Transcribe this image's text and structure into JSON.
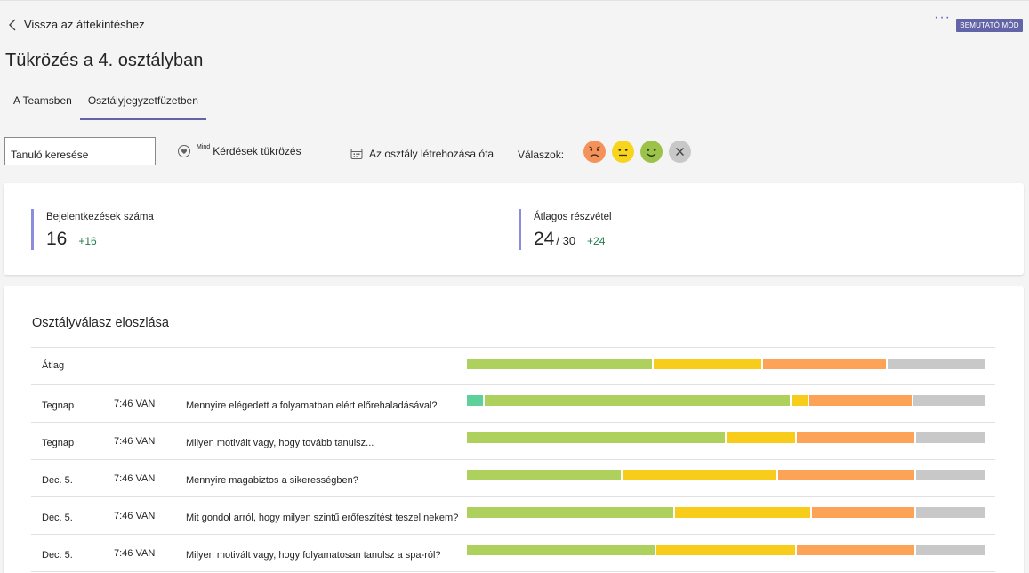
{
  "nav": {
    "back_label": "Vissza az áttekintéshez",
    "more_label": "···",
    "demo_badge": "BEMUTATÓ MÓD"
  },
  "page": {
    "title": "Tükrözés a 4. osztályban"
  },
  "tabs": [
    {
      "label": "A Teamsben"
    },
    {
      "label": "Osztályjegyzetfüzetben"
    }
  ],
  "toolbar": {
    "search_placeholder": "Tanuló keresése",
    "question_filter": {
      "superscript": "Mind",
      "label": "Kérdések tükrözés",
      "icon": "heart-check-icon"
    },
    "date_filter": {
      "label": "Az osztály létrehozása óta",
      "icon": "calendar-icon"
    },
    "answers_label": "Válaszok:",
    "emoji_filters": [
      {
        "name": "sad-face-icon",
        "color": "#f4925a"
      },
      {
        "name": "neutral-face-icon",
        "color": "#f7d51c"
      },
      {
        "name": "happy-face-icon",
        "color": "#9cc24a"
      },
      {
        "name": "clear-filter-icon",
        "color": "#c8c8c8"
      }
    ]
  },
  "stats": {
    "logins": {
      "label": "Bejelentkezések száma",
      "value": "16",
      "delta": "+16"
    },
    "participation": {
      "label": "Átlagos részvétel",
      "value": "24",
      "total": "/ 30",
      "delta": "+24"
    }
  },
  "distribution": {
    "title": "Osztályválasz eloszlása",
    "colors": {
      "great": "#5ed19a",
      "good": "#add15c",
      "ok": "#f8cc1b",
      "bad": "#fda358",
      "none": "#c8c8c8"
    },
    "average": {
      "label": "Átlag",
      "shares": {
        "great": 0.0,
        "good": 0.36,
        "ok": 0.21,
        "bad": 0.24,
        "none": 0.19
      }
    },
    "rows": [
      {
        "date": "Tegnap",
        "time": "7:46 VAN",
        "question": "Mennyire elégedett a folyamatban elért előrehaladásával?",
        "shares": {
          "great": 0.035,
          "good": 0.59,
          "ok": 0.035,
          "bad": 0.2,
          "none": 0.14
        }
      },
      {
        "date": "Tegnap",
        "time": "7:46 VAN",
        "question": "Milyen motivált vagy, hogy tovább tanulsz...",
        "shares": {
          "great": 0.0,
          "good": 0.5,
          "ok": 0.135,
          "bad": 0.23,
          "none": 0.135
        }
      },
      {
        "date": "Dec. 5.",
        "time": "7:46 VAN",
        "question": "Mennyire magabiztos a sikerességben?",
        "shares": {
          "great": 0.0,
          "good": 0.3,
          "ok": 0.3,
          "bad": 0.265,
          "none": 0.135
        }
      },
      {
        "date": "Dec. 5.",
        "time": "7:46 VAN",
        "question": "Mit gondol arról, hogy milyen szintű erőfeszítést teszel nekem?",
        "shares": {
          "great": 0.0,
          "good": 0.4,
          "ok": 0.265,
          "bad": 0.2,
          "none": 0.135
        }
      },
      {
        "date": "Dec. 5.",
        "time": "7:46 VAN",
        "question": "Milyen motivált vagy, hogy folyamatosan tanulsz a spa-ról?",
        "shares": {
          "great": 0.0,
          "good": 0.365,
          "ok": 0.27,
          "bad": 0.23,
          "none": 0.135
        }
      }
    ]
  }
}
